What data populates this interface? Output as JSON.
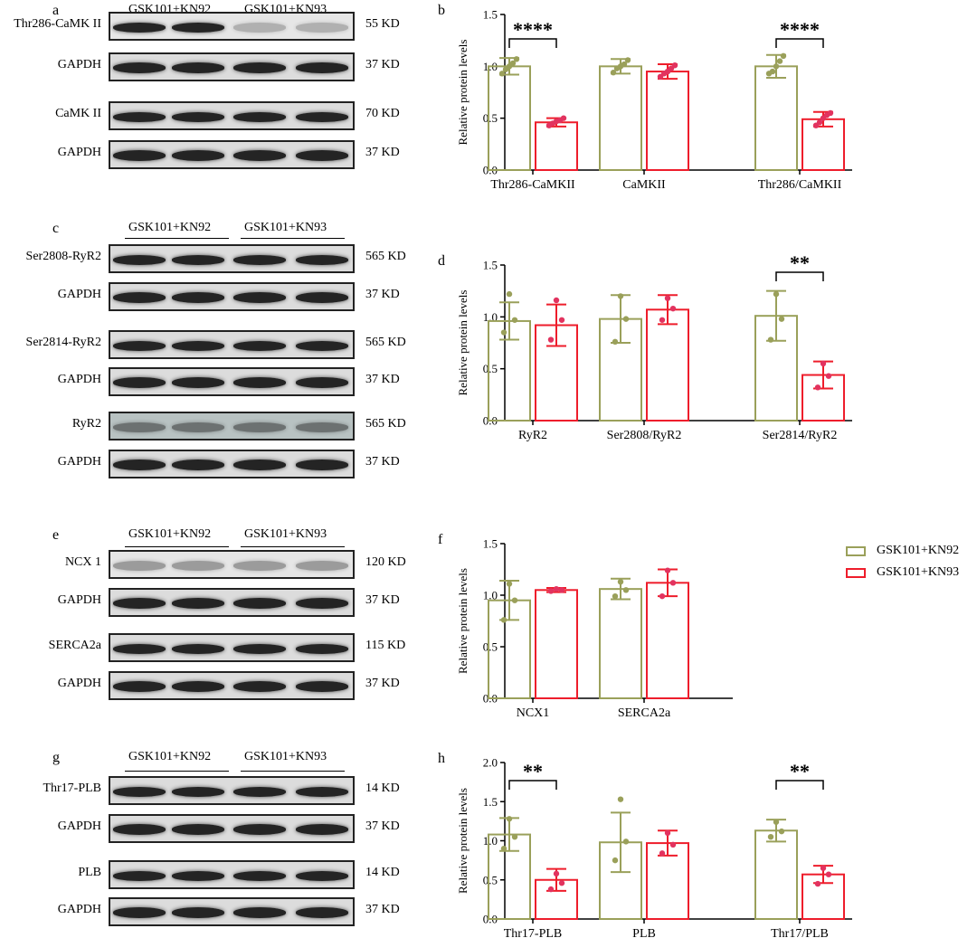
{
  "colors": {
    "group1": "#9aa05a",
    "group2": "#ee1d2b",
    "group2_points": "#e2335f",
    "ink": "#000000"
  },
  "legend": [
    {
      "name": "GSK101+KN92",
      "color": "#9aa05a"
    },
    {
      "name": "GSK101+KN93",
      "color": "#ee1d2b"
    }
  ],
  "blots": [
    {
      "letter": "a",
      "group1": "GSK101+KN92",
      "group2": "GSK101+KN93",
      "rows": [
        {
          "label": "Thr286-CaMK II",
          "kd": "55 KD"
        },
        {
          "label": "GAPDH",
          "kd": "37 KD"
        },
        {
          "label": "CaMK II",
          "kd": "70 KD"
        },
        {
          "label": "GAPDH",
          "kd": "37 KD"
        }
      ]
    },
    {
      "letter": "c",
      "group1": "GSK101+KN92",
      "group2": "GSK101+KN93",
      "rows": [
        {
          "label": "Ser2808-RyR2",
          "kd": "565 KD"
        },
        {
          "label": "GAPDH",
          "kd": "37 KD"
        },
        {
          "label": "Ser2814-RyR2",
          "kd": "565 KD"
        },
        {
          "label": "GAPDH",
          "kd": "37 KD"
        },
        {
          "label": "RyR2",
          "kd": "565 KD"
        },
        {
          "label": "GAPDH",
          "kd": "37 KD"
        }
      ]
    },
    {
      "letter": "e",
      "group1": "GSK101+KN92",
      "group2": "GSK101+KN93",
      "rows": [
        {
          "label": "NCX 1",
          "kd": "120 KD"
        },
        {
          "label": "GAPDH",
          "kd": "37 KD"
        },
        {
          "label": "SERCA2a",
          "kd": "115 KD"
        },
        {
          "label": "GAPDH",
          "kd": "37 KD"
        }
      ]
    },
    {
      "letter": "g",
      "group1": "GSK101+KN92",
      "group2": "GSK101+KN93",
      "rows": [
        {
          "label": "Thr17-PLB",
          "kd": "14 KD"
        },
        {
          "label": "GAPDH",
          "kd": "37 KD"
        },
        {
          "label": "PLB",
          "kd": "14 KD"
        },
        {
          "label": "GAPDH",
          "kd": "37 KD"
        }
      ]
    }
  ],
  "chart_data": [
    {
      "letter": "b",
      "type": "bar",
      "ylabel": "Relative protein levels",
      "ylim": [
        0,
        1.5
      ],
      "yticks": [
        "0.0",
        "0.5",
        "1.0",
        "1.5"
      ],
      "categories": [
        "Thr286-CaMKII",
        "CaMKII",
        "Thr286/CaMKII"
      ],
      "series": [
        {
          "name": "GSK101+KN92",
          "values": [
            1.0,
            1.0,
            1.0
          ],
          "errors": [
            0.08,
            0.07,
            0.11
          ],
          "points": [
            [
              0.93,
              0.97,
              1.0,
              1.03,
              1.07
            ],
            [
              0.94,
              0.98,
              1.0,
              1.02,
              1.06
            ],
            [
              0.93,
              0.95,
              1.0,
              1.05,
              1.1
            ]
          ]
        },
        {
          "name": "GSK101+KN93",
          "values": [
            0.46,
            0.95,
            0.49
          ],
          "errors": [
            0.04,
            0.07,
            0.07
          ],
          "points": [
            [
              0.43,
              0.45,
              0.47,
              0.48,
              0.5
            ],
            [
              0.9,
              0.93,
              0.95,
              0.98,
              1.01
            ],
            [
              0.43,
              0.46,
              0.5,
              0.53,
              0.55
            ]
          ]
        }
      ],
      "significance": [
        {
          "category": "Thr286-CaMKII",
          "label": "****"
        },
        {
          "category": "Thr286/CaMKII",
          "label": "****"
        }
      ]
    },
    {
      "letter": "d",
      "type": "bar",
      "ylabel": "Relative protein levels",
      "ylim": [
        0,
        1.5
      ],
      "yticks": [
        "0.0",
        "0.5",
        "1.0",
        "1.5"
      ],
      "categories": [
        "RyR2",
        "Ser2808/RyR2",
        "Ser2814/RyR2"
      ],
      "series": [
        {
          "name": "GSK101+KN92",
          "values": [
            0.96,
            0.98,
            1.01
          ],
          "errors": [
            0.18,
            0.23,
            0.24
          ],
          "points": [
            [
              0.85,
              0.97,
              1.22
            ],
            [
              0.76,
              0.98,
              1.2
            ],
            [
              0.78,
              0.98,
              1.22
            ]
          ]
        },
        {
          "name": "GSK101+KN93",
          "values": [
            0.92,
            1.07,
            0.44
          ],
          "errors": [
            0.2,
            0.14,
            0.13
          ],
          "points": [
            [
              0.78,
              0.97,
              1.16
            ],
            [
              0.97,
              1.08,
              1.18
            ],
            [
              0.32,
              0.43,
              0.55
            ]
          ]
        }
      ],
      "significance": [
        {
          "category": "Ser2814/RyR2",
          "label": "**"
        }
      ]
    },
    {
      "letter": "f",
      "type": "bar",
      "ylabel": "Relative protein levels",
      "ylim": [
        0,
        1.5
      ],
      "yticks": [
        "0.0",
        "0.5",
        "1.0",
        "1.5"
      ],
      "categories": [
        "NCX1",
        "SERCA2a"
      ],
      "series": [
        {
          "name": "GSK101+KN92",
          "values": [
            0.95,
            1.06
          ],
          "errors": [
            0.19,
            0.1
          ],
          "points": [
            [
              0.76,
              0.95,
              1.11
            ],
            [
              0.99,
              1.05,
              1.13
            ]
          ]
        },
        {
          "name": "GSK101+KN93",
          "values": [
            1.05,
            1.12
          ],
          "errors": [
            0.02,
            0.13
          ],
          "points": [
            [
              1.04,
              1.05,
              1.06
            ],
            [
              0.99,
              1.12,
              1.24
            ]
          ]
        }
      ],
      "significance": []
    },
    {
      "letter": "h",
      "type": "bar",
      "ylabel": "Relative protein levels",
      "ylim": [
        0,
        2.0
      ],
      "yticks": [
        "0.0",
        "0.5",
        "1.0",
        "1.5",
        "2.0"
      ],
      "categories": [
        "Thr17-PLB",
        "PLB",
        "Thr17/PLB"
      ],
      "series": [
        {
          "name": "GSK101+KN92",
          "values": [
            1.08,
            0.98,
            1.13
          ],
          "errors": [
            0.21,
            0.38,
            0.14
          ],
          "points": [
            [
              0.9,
              1.05,
              1.28
            ],
            [
              0.75,
              0.99,
              1.53
            ],
            [
              1.05,
              1.12,
              1.24
            ]
          ]
        },
        {
          "name": "GSK101+KN93",
          "values": [
            0.5,
            0.97,
            0.57
          ],
          "errors": [
            0.14,
            0.16,
            0.11
          ],
          "points": [
            [
              0.38,
              0.46,
              0.58
            ],
            [
              0.84,
              0.95,
              1.1
            ],
            [
              0.45,
              0.57,
              0.65
            ]
          ]
        }
      ],
      "significance": [
        {
          "category": "Thr17-PLB",
          "label": "**"
        },
        {
          "category": "Thr17/PLB",
          "label": "**"
        }
      ]
    }
  ]
}
